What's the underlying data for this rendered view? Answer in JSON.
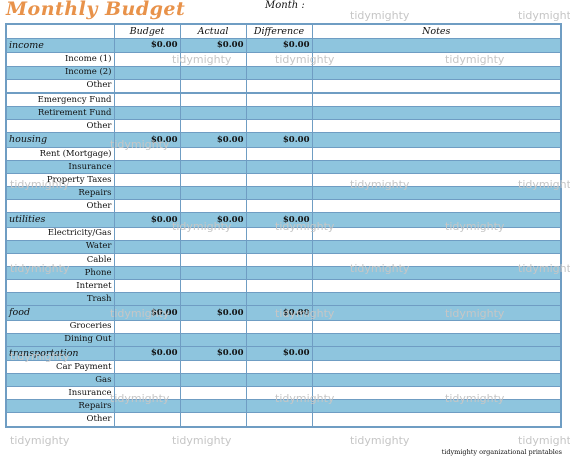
{
  "title": "Monthly Budget",
  "month_label": "Month :",
  "watermark": "tidymighty",
  "footer": "tidymighty organizational printables",
  "headers": {
    "category": "",
    "budget": "Budget",
    "actual": "Actual",
    "difference": "Difference",
    "notes": "Notes"
  },
  "rows": [
    {
      "kind": "section",
      "label": "income",
      "budget": "$0.00",
      "actual": "$0.00",
      "difference": "$0.00"
    },
    {
      "kind": "item",
      "label": "Income (1)"
    },
    {
      "kind": "item",
      "label": "Income (2)"
    },
    {
      "kind": "item",
      "label": "Other"
    },
    {
      "kind": "section",
      "label": "",
      "budget": "",
      "actual": "",
      "difference": ""
    },
    {
      "kind": "item",
      "label": "Emergency Fund"
    },
    {
      "kind": "item",
      "label": "Retirement Fund"
    },
    {
      "kind": "item",
      "label": "Other"
    },
    {
      "kind": "section",
      "label": "housing",
      "budget": "$0.00",
      "actual": "$0.00",
      "difference": "$0.00"
    },
    {
      "kind": "item",
      "label": "Rent (Mortgage)"
    },
    {
      "kind": "item",
      "label": "Insurance"
    },
    {
      "kind": "item",
      "label": "Property Taxes"
    },
    {
      "kind": "item",
      "label": "Repairs"
    },
    {
      "kind": "item",
      "label": "Other"
    },
    {
      "kind": "section",
      "label": "utilities",
      "budget": "$0.00",
      "actual": "$0.00",
      "difference": "$0.00"
    },
    {
      "kind": "item",
      "label": "Electricity/Gas"
    },
    {
      "kind": "item",
      "label": "Water"
    },
    {
      "kind": "item",
      "label": "Cable"
    },
    {
      "kind": "item",
      "label": "Phone"
    },
    {
      "kind": "item",
      "label": "Internet"
    },
    {
      "kind": "item",
      "label": "Trash"
    },
    {
      "kind": "section",
      "label": "food",
      "budget": "$0.00",
      "actual": "$0.00",
      "difference": "$0.00"
    },
    {
      "kind": "item",
      "label": "Groceries"
    },
    {
      "kind": "item",
      "label": "Dining Out"
    },
    {
      "kind": "section",
      "label": "transportation",
      "budget": "$0.00",
      "actual": "$0.00",
      "difference": "$0.00"
    },
    {
      "kind": "item",
      "label": "Car Payment"
    },
    {
      "kind": "item",
      "label": "Gas"
    },
    {
      "kind": "item",
      "label": "Insurance"
    },
    {
      "kind": "item",
      "label": "Repairs"
    },
    {
      "kind": "item",
      "label": "Other"
    }
  ]
}
